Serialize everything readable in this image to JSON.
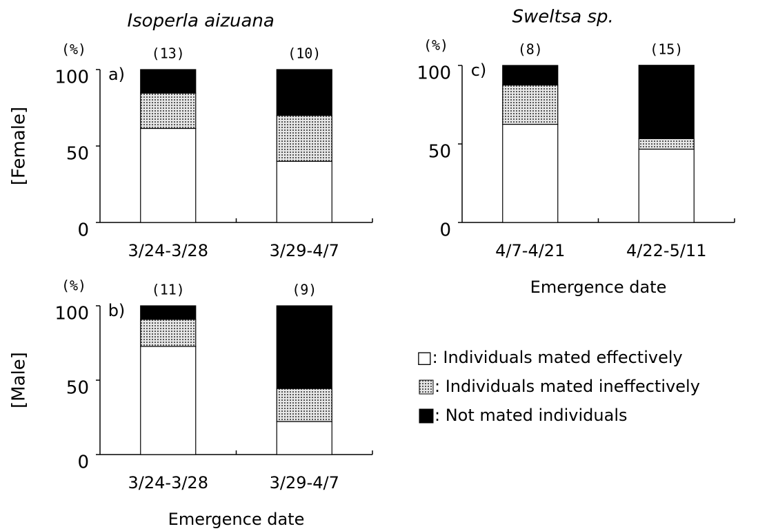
{
  "chart_data": [
    {
      "type": "stacked_bar",
      "title": "Isoperla aizuana",
      "row_label": "[Female]",
      "y_unit": "(%)",
      "panel": "a)",
      "categories": [
        "3/24-3/28",
        "3/29-4/7"
      ],
      "n_labels": [
        "(13)",
        "(10)"
      ],
      "series": [
        {
          "values": [
            61.5,
            40
          ]
        },
        {
          "values": [
            23.1,
            30
          ]
        },
        {
          "values": [
            15.4,
            30
          ]
        }
      ],
      "ylim": [
        0,
        100
      ],
      "yticks": [
        0,
        50,
        100
      ]
    },
    {
      "type": "stacked_bar",
      "row_label": "[Male]",
      "y_unit": "(%)",
      "panel": "b)",
      "xlabel": "Emergence date",
      "categories": [
        "3/24-3/28",
        "3/29-4/7"
      ],
      "n_labels": [
        "(11)",
        "(9)"
      ],
      "series": [
        {
          "values": [
            72.7,
            22.2
          ]
        },
        {
          "values": [
            18.2,
            22.2
          ]
        },
        {
          "values": [
            9.1,
            55.6
          ]
        }
      ],
      "ylim": [
        0,
        100
      ],
      "yticks": [
        0,
        50,
        100
      ]
    },
    {
      "type": "stacked_bar",
      "title": "Sweltsa sp.",
      "y_unit": "(%)",
      "panel": "c)",
      "xlabel": "Emergence date",
      "categories": [
        "4/7-4/21",
        "4/22-5/11"
      ],
      "n_labels": [
        "(8)",
        "(15)"
      ],
      "series": [
        {
          "values": [
            62.5,
            46.7
          ]
        },
        {
          "values": [
            25,
            6.7
          ]
        },
        {
          "values": [
            12.5,
            46.7
          ]
        }
      ],
      "ylim": [
        0,
        100
      ],
      "yticks": [
        0,
        50,
        100
      ]
    }
  ],
  "legend": [
    {
      "name": "□: Individuals mated effectively",
      "color": "#ffffff"
    },
    {
      "name": ": Individuals mated ineffectively",
      "color": "#bdbdbd"
    },
    {
      "name": ": Not mated individuals",
      "color": "#000000"
    }
  ]
}
